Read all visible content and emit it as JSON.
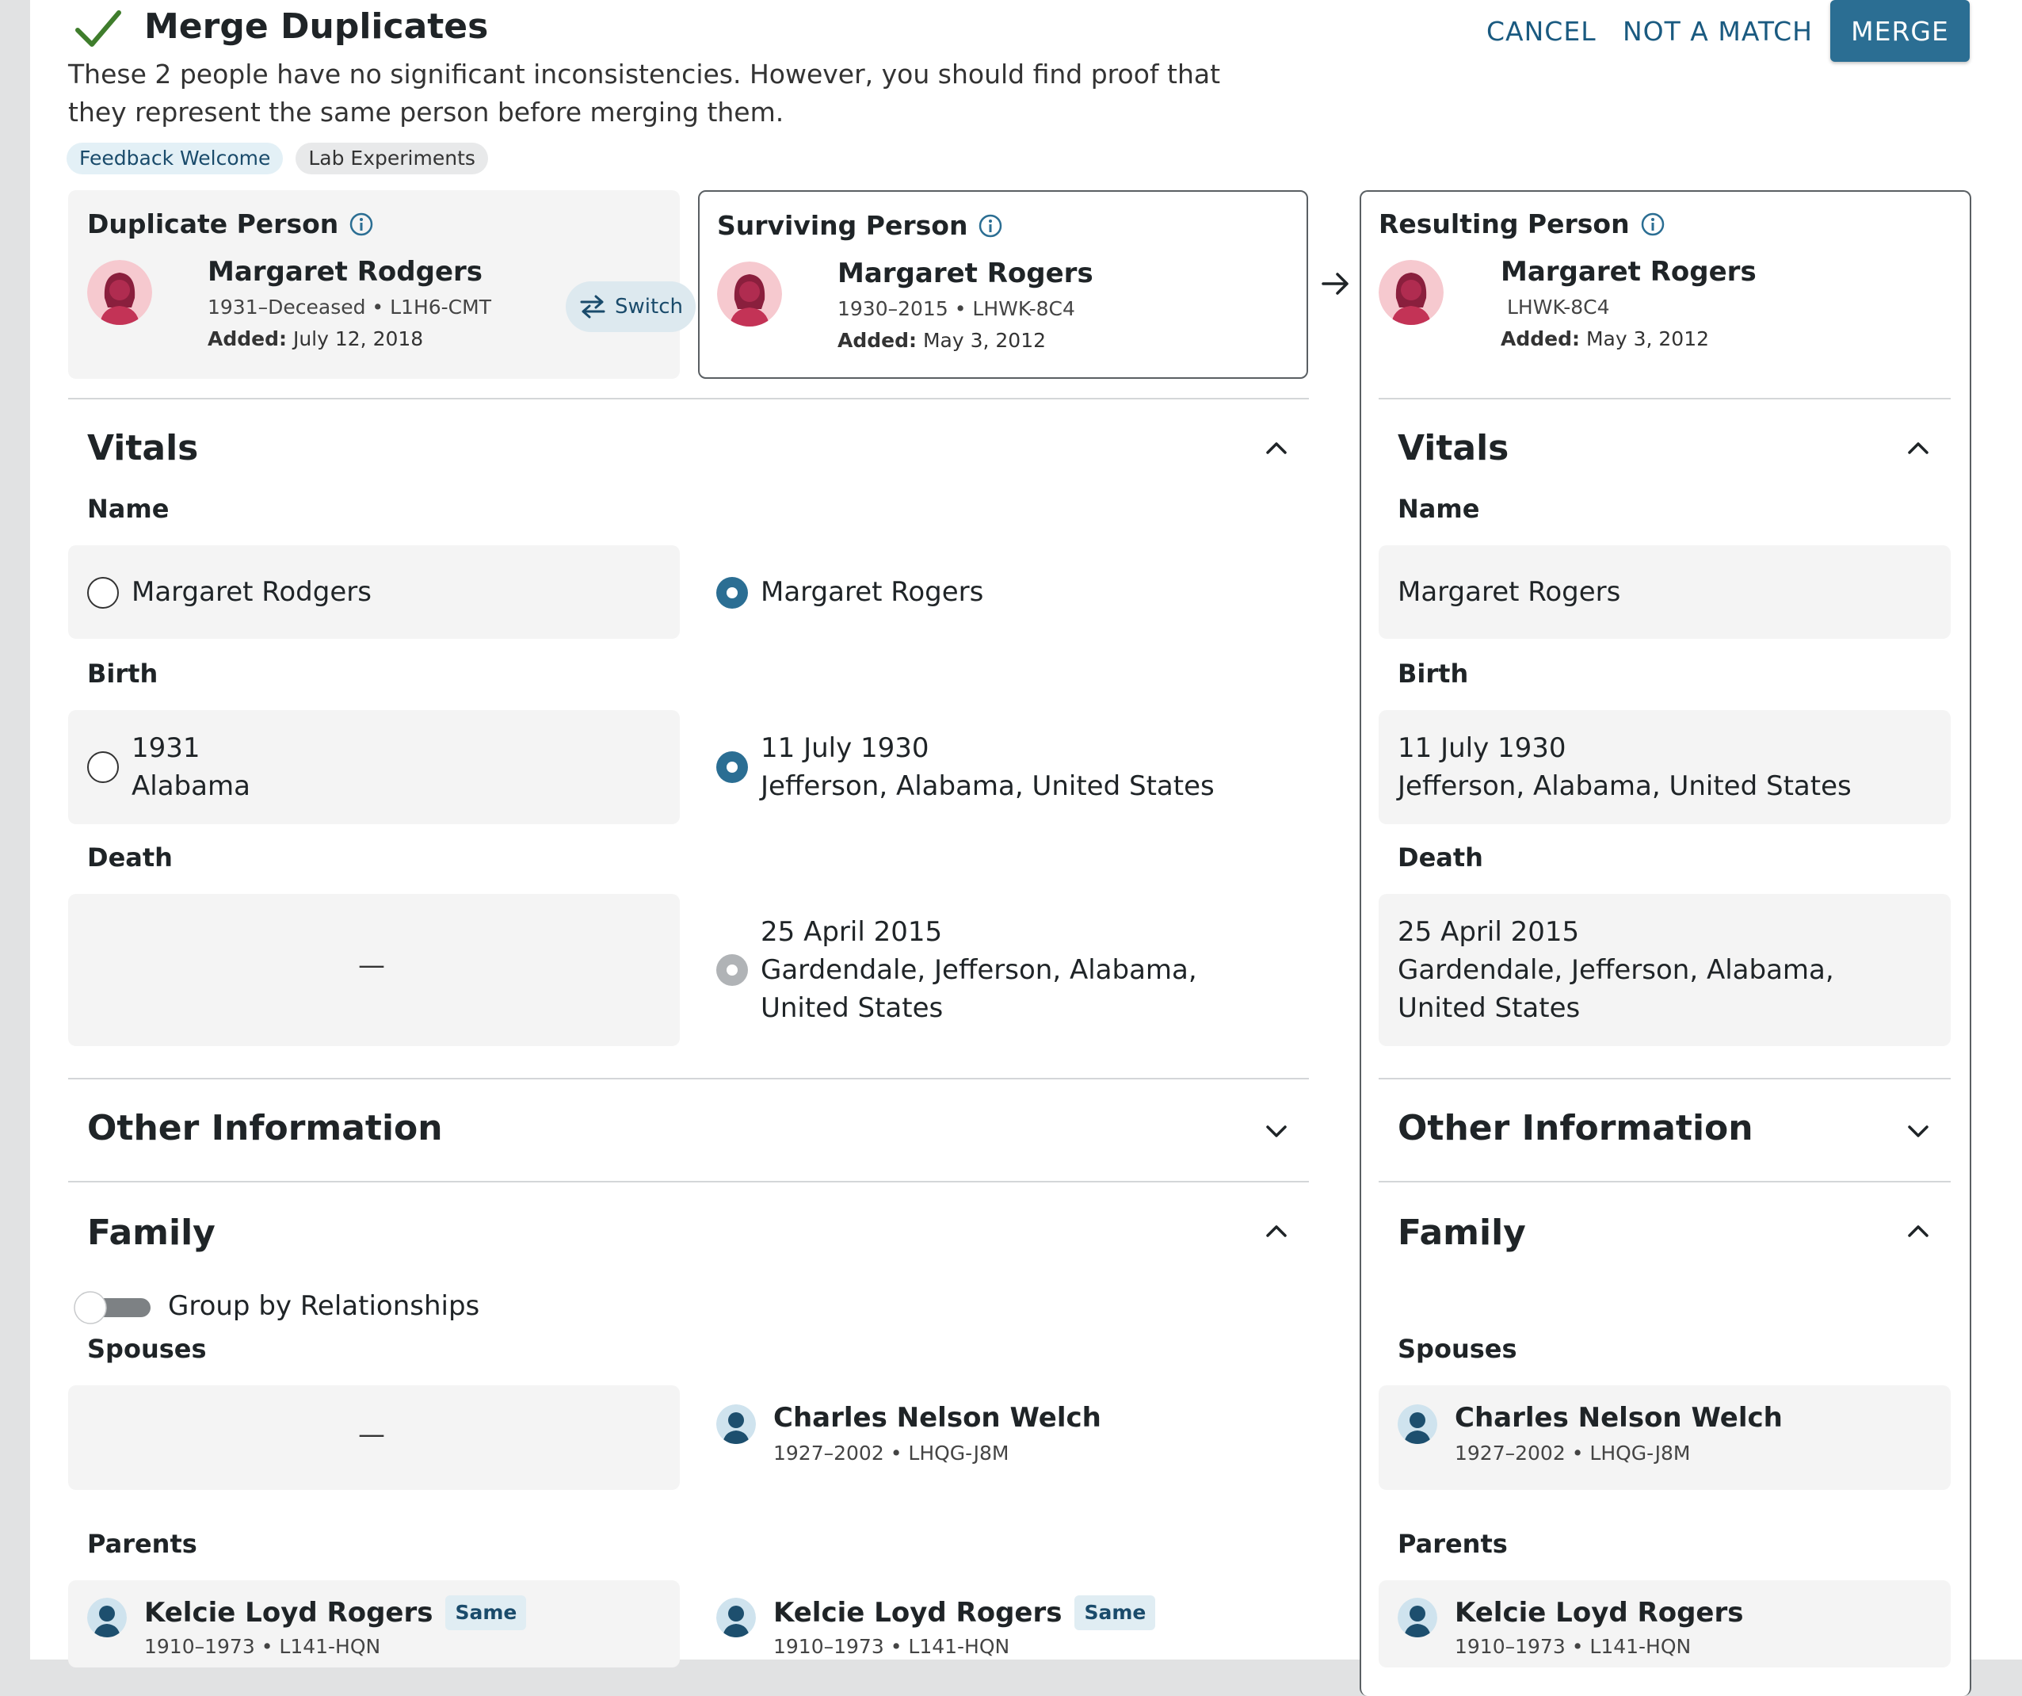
{
  "header": {
    "title": "Merge Duplicates",
    "description": "These 2 people have no significant inconsistencies. However, you should find proof that they represent the same person before merging them.",
    "tags": [
      "Feedback Welcome",
      "Lab Experiments"
    ],
    "cancel_label": "CANCEL",
    "not_match_label": "NOT A MATCH",
    "merge_label": "MERGE"
  },
  "duplicate": {
    "label": "Duplicate Person",
    "name": "Margaret Rodgers",
    "meta": "1931–Deceased • L1H6-CMT",
    "added_label": "Added:",
    "added_date": "July 12, 2018",
    "switch_label": "Switch"
  },
  "surviving": {
    "label": "Surviving Person",
    "name": "Margaret Rogers",
    "meta": "1930–2015 • LHWK-8C4",
    "added_label": "Added:",
    "added_date": "May 3, 2012"
  },
  "resulting": {
    "label": "Resulting Person",
    "name": "Margaret Rogers",
    "meta": "LHWK-8C4",
    "added_label": "Added:",
    "added_date": "May 3, 2012"
  },
  "vitals": {
    "title": "Vitals",
    "name_label": "Name",
    "birth_label": "Birth",
    "death_label": "Death",
    "dup_name": "Margaret Rodgers",
    "surv_name": "Margaret Rogers",
    "res_name": "Margaret Rogers",
    "dup_birth_line1": "1931",
    "dup_birth_line2": "Alabama",
    "surv_birth_line1": "11 July 1930",
    "surv_birth_line2": "Jefferson, Alabama, United States",
    "res_birth_line1": "11 July 1930",
    "res_birth_line2": "Jefferson, Alabama, United States",
    "dup_death": "—",
    "surv_death_line1": "25 April 2015",
    "surv_death_line2": "Gardendale, Jefferson, Alabama, United States",
    "res_death_line1": "25 April 2015",
    "res_death_line2": "Gardendale, Jefferson, Alabama, United States"
  },
  "other_info": {
    "title": "Other Information"
  },
  "family": {
    "title": "Family",
    "group_toggle_label": "Group by Relationships",
    "spouses_label": "Spouses",
    "parents_label": "Parents",
    "dup_spouse": "—",
    "spouse": {
      "name": "Charles Nelson Welch",
      "meta": "1927–2002 • LHQG-J8M"
    },
    "parent": {
      "name": "Kelcie Loyd Rogers",
      "meta": "1910–1973 • L141-HQN",
      "badge": "Same"
    }
  },
  "colors": {
    "accent": "#2b6e93",
    "check": "#3f7d2c",
    "female_avatar_bg": "#f6c9cf",
    "male_avatar_bg": "#cfe3ee"
  }
}
